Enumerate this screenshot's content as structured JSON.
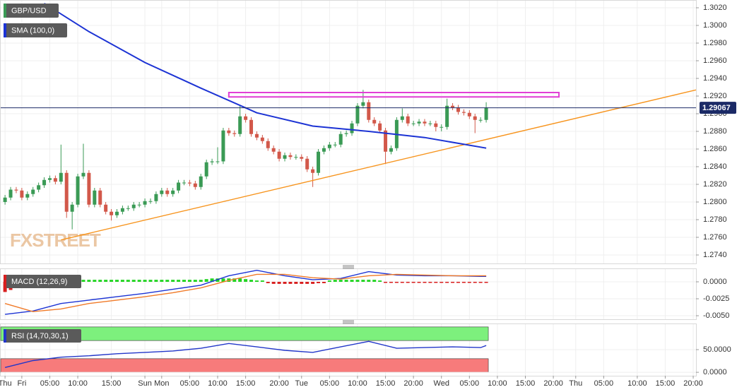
{
  "chart_data": [
    {
      "type": "candlestick",
      "title": "GBP/USD",
      "watermark": "FXSTREET",
      "up_color": "#3a9a55",
      "down_color": "#d2584a",
      "grid": true,
      "xlim": [
        -0.9,
        123.5
      ],
      "ylim": [
        1.27304,
        1.30288
      ],
      "yticks": [
        {
          "value": 1.274,
          "label": "1.2740"
        },
        {
          "value": 1.276,
          "label": "1.2760"
        },
        {
          "value": 1.278,
          "label": "1.2780"
        },
        {
          "value": 1.28,
          "label": "1.2800"
        },
        {
          "value": 1.282,
          "label": "1.2820"
        },
        {
          "value": 1.284,
          "label": "1.2840"
        },
        {
          "value": 1.286,
          "label": "1.2860"
        },
        {
          "value": 1.288,
          "label": "1.2880"
        },
        {
          "value": 1.29,
          "label": "1.2900"
        },
        {
          "value": 1.292,
          "label": "1.2920"
        },
        {
          "value": 1.294,
          "label": "1.2940"
        },
        {
          "value": 1.296,
          "label": "1.2960"
        },
        {
          "value": 1.298,
          "label": "1.2980"
        },
        {
          "value": 1.3,
          "label": "1.3000"
        },
        {
          "value": 1.302,
          "label": "1.3020"
        }
      ],
      "x": [
        0,
        1,
        2,
        3,
        4,
        5,
        6,
        7,
        8,
        9,
        10,
        11,
        12,
        13,
        14,
        15,
        16,
        17,
        18,
        19,
        20,
        21,
        22,
        23,
        24,
        25,
        26,
        27,
        28,
        29,
        30,
        31,
        32,
        33,
        34,
        35,
        36,
        37,
        38,
        39,
        40,
        41,
        42,
        43,
        44,
        45,
        46,
        47,
        48,
        49,
        50,
        51,
        52,
        53,
        54,
        55,
        56,
        57,
        58,
        59,
        60,
        61,
        62,
        63,
        64,
        65,
        66,
        67,
        68,
        69,
        70,
        71,
        72,
        73,
        74,
        75,
        76,
        77,
        78,
        79,
        80,
        81,
        82,
        83,
        84,
        85,
        86
      ],
      "open": [
        1.28,
        1.2805,
        1.2814,
        1.2813,
        1.2805,
        1.2809,
        1.2814,
        1.2819,
        1.2825,
        1.2827,
        1.2823,
        1.2833,
        1.2789,
        1.2797,
        1.2829,
        1.2833,
        1.2797,
        1.2813,
        1.2797,
        1.2789,
        1.2785,
        1.2789,
        1.2793,
        1.2793,
        1.2797,
        1.2797,
        1.2801,
        1.2801,
        1.2809,
        1.2813,
        1.2809,
        1.2813,
        1.2822,
        1.2822,
        1.2821,
        1.2817,
        1.2829,
        1.2845,
        1.2846,
        1.2846,
        1.2881,
        1.2878,
        1.2877,
        1.2897,
        1.2893,
        1.2877,
        1.2873,
        1.2869,
        1.2861,
        1.2857,
        1.2849,
        1.2853,
        1.2851,
        1.2851,
        1.2849,
        1.2837,
        1.2833,
        1.2857,
        1.2861,
        1.2865,
        1.2865,
        1.2877,
        1.2878,
        1.2889,
        1.2909,
        1.2913,
        1.2893,
        1.2889,
        1.2881,
        1.2857,
        1.2861,
        1.2893,
        1.2897,
        1.2889,
        1.2889,
        1.2891,
        1.2889,
        1.2889,
        1.2885,
        1.2885,
        1.2909,
        1.2907,
        1.2902,
        1.2901,
        1.2897,
        1.2893,
        1.2893
      ],
      "high": [
        1.2808,
        1.2817,
        1.2817,
        1.2816,
        1.2812,
        1.2817,
        1.2822,
        1.2828,
        1.283,
        1.283,
        1.2865,
        1.2836,
        1.28,
        1.2832,
        1.2866,
        1.2836,
        1.2816,
        1.2816,
        1.28,
        1.2792,
        1.2792,
        1.2796,
        1.2796,
        1.28,
        1.28,
        1.2804,
        1.2804,
        1.2812,
        1.2816,
        1.2816,
        1.2816,
        1.2825,
        1.2825,
        1.2825,
        1.2824,
        1.2832,
        1.2848,
        1.2849,
        1.2862,
        1.2884,
        1.2884,
        1.2881,
        1.2909,
        1.29,
        1.2896,
        1.288,
        1.2876,
        1.2872,
        1.2864,
        1.286,
        1.2856,
        1.2856,
        1.2854,
        1.2854,
        1.2852,
        1.284,
        1.286,
        1.2864,
        1.2868,
        1.2868,
        1.288,
        1.2881,
        1.2892,
        1.2912,
        1.2927,
        1.2916,
        1.2896,
        1.2892,
        1.2884,
        1.2864,
        1.2896,
        1.2906,
        1.29,
        1.2892,
        1.2894,
        1.2894,
        1.2892,
        1.2892,
        1.2888,
        1.2917,
        1.2912,
        1.291,
        1.2905,
        1.2904,
        1.29,
        1.2896,
        1.2913
      ],
      "low": [
        1.2797,
        1.2802,
        1.281,
        1.2802,
        1.2802,
        1.2806,
        1.2811,
        1.2816,
        1.2822,
        1.282,
        1.282,
        1.2782,
        1.2769,
        1.2794,
        1.2826,
        1.2794,
        1.2794,
        1.2794,
        1.2786,
        1.2779,
        1.2782,
        1.2786,
        1.279,
        1.279,
        1.2794,
        1.2794,
        1.2798,
        1.2798,
        1.2806,
        1.2806,
        1.2806,
        1.281,
        1.2819,
        1.2818,
        1.2814,
        1.2814,
        1.2826,
        1.2842,
        1.2843,
        1.2843,
        1.2875,
        1.2874,
        1.2874,
        1.289,
        1.2874,
        1.287,
        1.2866,
        1.2858,
        1.2854,
        1.2846,
        1.2846,
        1.2848,
        1.2848,
        1.2846,
        1.2834,
        1.2817,
        1.283,
        1.2854,
        1.2858,
        1.2862,
        1.2862,
        1.2874,
        1.2875,
        1.2886,
        1.2906,
        1.289,
        1.2886,
        1.2878,
        1.2843,
        1.2854,
        1.2858,
        1.289,
        1.2886,
        1.2886,
        1.2886,
        1.2886,
        1.2886,
        1.288,
        1.288,
        1.2882,
        1.2904,
        1.2899,
        1.2898,
        1.2894,
        1.2878,
        1.289,
        1.289
      ],
      "close": [
        1.2805,
        1.2814,
        1.2813,
        1.2805,
        1.2809,
        1.2814,
        1.2819,
        1.2825,
        1.2827,
        1.2823,
        1.2833,
        1.2789,
        1.2797,
        1.2829,
        1.2833,
        1.2797,
        1.2813,
        1.2797,
        1.2789,
        1.2785,
        1.2789,
        1.2793,
        1.2793,
        1.2797,
        1.2797,
        1.2801,
        1.2801,
        1.2809,
        1.2813,
        1.2809,
        1.2813,
        1.2822,
        1.2822,
        1.2821,
        1.2817,
        1.2829,
        1.2845,
        1.2846,
        1.2846,
        1.2881,
        1.2878,
        1.2877,
        1.2897,
        1.2893,
        1.2877,
        1.2873,
        1.2869,
        1.2861,
        1.2857,
        1.2849,
        1.2853,
        1.2851,
        1.2851,
        1.2849,
        1.2837,
        1.2833,
        1.2857,
        1.2861,
        1.2865,
        1.2865,
        1.2877,
        1.2878,
        1.2889,
        1.2909,
        1.2913,
        1.2893,
        1.2889,
        1.2881,
        1.2857,
        1.2861,
        1.2893,
        1.2897,
        1.2889,
        1.2889,
        1.2891,
        1.2889,
        1.2889,
        1.2885,
        1.2885,
        1.2909,
        1.2907,
        1.2902,
        1.2901,
        1.2897,
        1.2893,
        1.2893,
        1.2907
      ],
      "overlays": [
        {
          "name": "SMA (100,0)",
          "color": "#1c33d4",
          "x": [
            7,
            15,
            25,
            35,
            45,
            55,
            65,
            75,
            86
          ],
          "values": [
            1.3025,
            1.2993,
            1.2958,
            1.2929,
            1.2901,
            1.2886,
            1.288,
            1.2873,
            1.2861
          ]
        }
      ],
      "trendline": {
        "color": "#f7941d",
        "x": [
          10,
          123.5
        ],
        "values": [
          1.2757,
          1.2927
        ]
      },
      "resistance": {
        "color": "#e23fd6",
        "x": [
          40,
          99
        ],
        "values": [
          1.2924,
          1.2919
        ]
      },
      "last_price": 1.29067,
      "last_price_color": "#1b2a66"
    },
    {
      "type": "macd",
      "title": "MACD (12,26,9)",
      "grid": true,
      "up_color": "#22d422",
      "down_color": "#d81e1e",
      "xlim": [
        -0.9,
        123.5
      ],
      "ylim": [
        -0.00552,
        0.00198
      ],
      "yticks": [
        {
          "value": 0,
          "label": "0.0000"
        },
        {
          "value": -0.0025,
          "label": "-0.0025"
        },
        {
          "value": -0.005,
          "label": "-0.0050"
        }
      ],
      "histogram": [
        -0.0015,
        -0.0012,
        -0.0009,
        -0.0006,
        -0.0003,
        0.0003,
        0.0003,
        0.0003,
        0.0003,
        0.0003,
        0.0003,
        0.0003,
        0.0003,
        0.0003,
        0.0003,
        0.0003,
        0.0003,
        0.0003,
        0.0003,
        0.0003,
        0.0003,
        0.0003,
        0.0003,
        0.0003,
        0.0003,
        0.0003,
        0.0003,
        0.0003,
        0.0003,
        0.0003,
        0.0003,
        0.0003,
        0.0003,
        0.0003,
        0.0003,
        0.0003,
        0.0004,
        0.0005,
        0.0005,
        0.0005,
        0.0005,
        0.0005,
        0.0005,
        0.0004,
        0.0003,
        0.0002,
        0.0002,
        -0.0002,
        -0.0003,
        -0.0003,
        -0.0003,
        -0.0003,
        -0.0003,
        -0.0003,
        -0.0003,
        -0.0003,
        -0.0002,
        -0.0002,
        0.0002,
        0.0003,
        0.0003,
        0.0003,
        0.0003,
        0.0003,
        0.0003,
        0.0003,
        0.0003,
        0.0002,
        -0.0001,
        -0.0001,
        -0.0001,
        -0.0001,
        -0.0001,
        -0.0001,
        -0.0001,
        -0.0001,
        -0.0001,
        -0.0001,
        -0.0001,
        -0.0001,
        -0.0001,
        -0.0001,
        -0.0001,
        -0.0001,
        -0.0001,
        -0.0001,
        -0.0001
      ],
      "series": [
        {
          "color": "#1c33d4",
          "x": [
            0,
            5,
            10,
            15,
            20,
            25,
            30,
            35,
            40,
            45,
            50,
            55,
            60,
            65,
            70,
            75,
            80,
            85,
            86
          ],
          "values": [
            -0.0048,
            -0.0043,
            -0.0032,
            -0.0027,
            -0.0022,
            -0.0017,
            -0.0011,
            -0.0005,
            0.0009,
            0.0017,
            0.0009,
            0.0003,
            0.0005,
            0.0015,
            0.001,
            0.0009,
            0.0009,
            0.0008,
            0.0008
          ]
        },
        {
          "color": "#f07a28",
          "x": [
            0,
            5,
            10,
            15,
            20,
            25,
            30,
            35,
            40,
            45,
            50,
            55,
            60,
            65,
            70,
            75,
            80,
            85,
            86
          ],
          "values": [
            -0.0032,
            -0.0044,
            -0.004,
            -0.0032,
            -0.0027,
            -0.0022,
            -0.0016,
            -0.0009,
            0.0002,
            0.0011,
            0.0011,
            0.0006,
            0.0004,
            0.0009,
            0.0011,
            0.001,
            0.0009,
            0.0009,
            0.0009
          ]
        }
      ]
    },
    {
      "type": "line",
      "title": "RSI (14,70,30,1)",
      "grid": true,
      "xlim": [
        -0.9,
        123.5
      ],
      "ylim": [
        -7.6,
        107.6
      ],
      "yticks": [
        {
          "value": 50,
          "label": "50.0000"
        },
        {
          "value": 0,
          "label": "0.0000"
        }
      ],
      "bands": [
        {
          "range": [
            70,
            100
          ],
          "color": "#7df07d"
        },
        {
          "range": [
            0,
            30
          ],
          "color": "#f77b7b"
        }
      ],
      "series": [
        {
          "color": "#2236c9",
          "x": [
            0,
            5,
            10,
            15,
            20,
            25,
            30,
            35,
            40,
            45,
            50,
            55,
            60,
            65,
            70,
            75,
            80,
            85,
            86
          ],
          "values": [
            10.6,
            25.8,
            33.3,
            36.4,
            40.9,
            43.9,
            47.0,
            53.0,
            63.6,
            56.1,
            48.5,
            43.9,
            56.1,
            68.2,
            53.0,
            54.5,
            56.1,
            54.5,
            59.1
          ]
        }
      ],
      "xticks": [
        {
          "value": 0,
          "label": "Thu"
        },
        {
          "value": 3,
          "label": "Fri"
        },
        {
          "value": 8,
          "label": "05:00"
        },
        {
          "value": 13,
          "label": "10:00"
        },
        {
          "value": 19,
          "label": "15:00"
        },
        {
          "value": 25,
          "label": "Sun"
        },
        {
          "value": 28,
          "label": "Mon"
        },
        {
          "value": 33,
          "label": "05:00"
        },
        {
          "value": 38,
          "label": "10:00"
        },
        {
          "value": 43,
          "label": "15:00"
        },
        {
          "value": 49,
          "label": "20:00"
        },
        {
          "value": 53,
          "label": "Tue"
        },
        {
          "value": 58,
          "label": "05:00"
        },
        {
          "value": 63,
          "label": "10:00"
        },
        {
          "value": 68,
          "label": "15:00"
        },
        {
          "value": 73,
          "label": "20:00"
        },
        {
          "value": 78,
          "label": "Wed"
        },
        {
          "value": 83,
          "label": "05:00"
        },
        {
          "value": 88,
          "label": "10:00"
        },
        {
          "value": 93,
          "label": "15:00"
        },
        {
          "value": 98,
          "label": "20:00"
        },
        {
          "value": 102,
          "label": "Thu"
        },
        {
          "value": 107,
          "label": "05:00"
        },
        {
          "value": 113,
          "label": "10:00"
        },
        {
          "value": 118,
          "label": "15:00"
        },
        {
          "value": 123,
          "label": "20:00"
        }
      ]
    }
  ]
}
